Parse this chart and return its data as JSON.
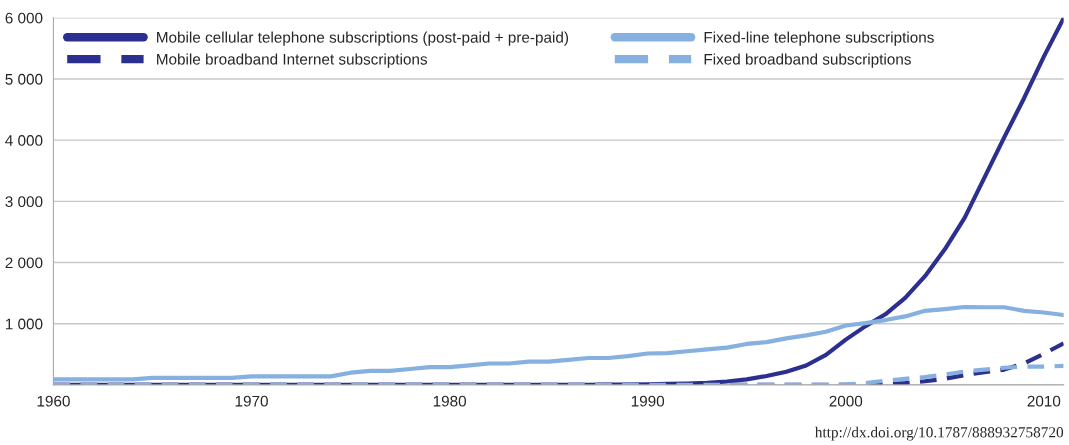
{
  "chart_data": {
    "type": "line",
    "x": [
      1960,
      1961,
      1962,
      1963,
      1964,
      1965,
      1966,
      1967,
      1968,
      1969,
      1970,
      1971,
      1972,
      1973,
      1974,
      1975,
      1976,
      1977,
      1978,
      1979,
      1980,
      1981,
      1982,
      1983,
      1984,
      1985,
      1986,
      1987,
      1988,
      1989,
      1990,
      1991,
      1992,
      1993,
      1994,
      1995,
      1996,
      1997,
      1998,
      1999,
      2000,
      2001,
      2002,
      2003,
      2004,
      2005,
      2006,
      2007,
      2008,
      2009,
      2010,
      2011
    ],
    "series": [
      {
        "name": "Mobile cellular telephone subscriptions (post-paid + pre-paid)",
        "color": "#2b2f8f",
        "line_style": "solid",
        "values": [
          0,
          0,
          0,
          0,
          0,
          0,
          0,
          0,
          0,
          0,
          0,
          0,
          0,
          0,
          0,
          0,
          0,
          0,
          0,
          0,
          0,
          0,
          0,
          0,
          0,
          0,
          1,
          2,
          4,
          6,
          10,
          16,
          23,
          34,
          56,
          91,
          145,
          215,
          318,
          491,
          740,
          961,
          1154,
          1423,
          1777,
          2217,
          2731,
          3389,
          4046,
          4686,
          5366,
          5994
        ]
      },
      {
        "name": "Fixed-line telephone subscriptions",
        "color": "#85b0e0",
        "line_style": "solid",
        "values": [
          90,
          90,
          90,
          90,
          90,
          115,
          115,
          115,
          115,
          115,
          140,
          140,
          140,
          140,
          140,
          200,
          230,
          230,
          260,
          290,
          290,
          320,
          350,
          350,
          380,
          380,
          410,
          440,
          440,
          470,
          514,
          520,
          550,
          580,
          610,
          670,
          700,
          760,
          810,
          870,
          971,
          1010,
          1060,
          1120,
          1211,
          1240,
          1274,
          1269,
          1269,
          1211,
          1183,
          1143
        ]
      },
      {
        "name": "Mobile broadband Internet subscriptions",
        "color": "#2b2f8f",
        "line_style": "dashed",
        "values": [
          0,
          0,
          0,
          0,
          0,
          0,
          0,
          0,
          0,
          0,
          0,
          0,
          0,
          0,
          0,
          0,
          0,
          0,
          0,
          0,
          0,
          0,
          0,
          0,
          0,
          0,
          0,
          0,
          0,
          0,
          0,
          0,
          0,
          0,
          0,
          0,
          0,
          0,
          0,
          0,
          0,
          0,
          10,
          30,
          60,
          100,
          160,
          210,
          250,
          350,
          510,
          680
        ]
      },
      {
        "name": "Fixed broadband subscriptions",
        "color": "#85b0e0",
        "line_style": "dashed",
        "values": [
          0,
          0,
          0,
          0,
          0,
          0,
          0,
          0,
          0,
          0,
          0,
          0,
          0,
          0,
          0,
          0,
          0,
          0,
          0,
          0,
          0,
          0,
          0,
          0,
          0,
          0,
          0,
          0,
          0,
          0,
          0,
          0,
          0,
          0,
          0,
          0,
          0,
          0,
          0,
          0,
          10,
          30,
          70,
          100,
          130,
          170,
          220,
          250,
          280,
          300,
          300,
          310
        ]
      }
    ],
    "xlim": [
      1960,
      2011
    ],
    "xticks": [
      1960,
      1970,
      1980,
      1990,
      2000,
      2010
    ],
    "ylim": [
      0,
      6000
    ],
    "yticks": [
      {
        "value": 0,
        "label": null
      },
      {
        "value": 1000,
        "label": "1 000"
      },
      {
        "value": 2000,
        "label": "2 000"
      },
      {
        "value": 3000,
        "label": "3 000"
      },
      {
        "value": 4000,
        "label": "4 000"
      },
      {
        "value": 5000,
        "label": "5 000"
      },
      {
        "value": 6000,
        "label": "6 000"
      }
    ],
    "grid": "y",
    "legend": "top left",
    "annotations": [
      "http://dx.doi.org/10.1787/888932758720"
    ]
  }
}
